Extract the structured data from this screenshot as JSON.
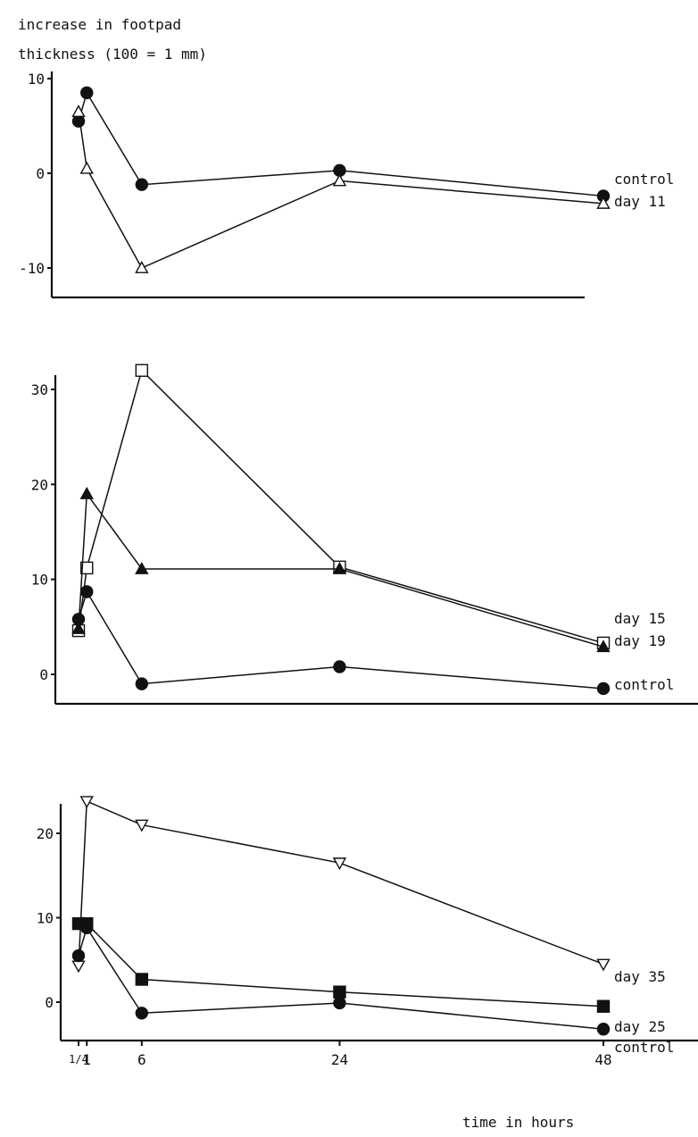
{
  "figure": {
    "y_axis_label_line1": "increase in footpad",
    "y_axis_label_line2": "thickness (100 = 1 mm)",
    "x_axis_label": "time in hours",
    "x_tick_labels": [
      "1/4",
      "1",
      "6",
      "24",
      "48"
    ]
  },
  "chart_data": [
    {
      "type": "line",
      "x": [
        0.25,
        1,
        6,
        24,
        48
      ],
      "xlim": [
        -2,
        50
      ],
      "ylim": [
        -13,
        11
      ],
      "yticks": [
        10,
        0,
        -10
      ],
      "ytick_labels": [
        "10",
        "0",
        "-10"
      ],
      "grid": false,
      "series": [
        {
          "name": "control",
          "marker": "filled-circle",
          "values": [
            5.5,
            8.5,
            -1.2,
            0.3,
            -2.4
          ]
        },
        {
          "name": "day 11",
          "marker": "open-triangle",
          "values": [
            6.5,
            0.5,
            -10,
            -0.8,
            -3.2
          ]
        }
      ]
    },
    {
      "type": "line",
      "x": [
        0.25,
        1,
        6,
        24,
        48
      ],
      "xlim": [
        -2,
        50
      ],
      "ylim": [
        -2.5,
        33
      ],
      "yticks": [
        30,
        20,
        10,
        0
      ],
      "ytick_labels": [
        "30",
        "20",
        "10",
        "0"
      ],
      "grid": false,
      "series": [
        {
          "name": "day 15",
          "marker": "open-square",
          "values": [
            4.6,
            11.2,
            32,
            11.3,
            3.3
          ]
        },
        {
          "name": "day 19",
          "marker": "filled-triangle",
          "values": [
            4.8,
            19,
            11.1,
            11.1,
            2.9
          ]
        },
        {
          "name": "control",
          "marker": "filled-circle",
          "values": [
            5.8,
            8.7,
            -1,
            0.8,
            -1.5
          ]
        }
      ]
    },
    {
      "type": "line",
      "x": [
        0.25,
        1,
        6,
        24,
        48
      ],
      "xlim": [
        -2,
        50
      ],
      "ylim": [
        -5,
        25
      ],
      "yticks": [
        20,
        10,
        0
      ],
      "ytick_labels": [
        "20",
        "10",
        "0"
      ],
      "grid": false,
      "series": [
        {
          "name": "day 35",
          "marker": "open-triangle-down",
          "values": [
            4.3,
            23.8,
            21,
            16.5,
            4.5
          ]
        },
        {
          "name": "day 25",
          "marker": "filled-square",
          "values": [
            9.3,
            9.3,
            2.7,
            1.2,
            -0.5
          ]
        },
        {
          "name": "control",
          "marker": "filled-circle",
          "values": [
            5.5,
            8.8,
            -1.3,
            -0.1,
            -3.2
          ]
        }
      ]
    }
  ]
}
